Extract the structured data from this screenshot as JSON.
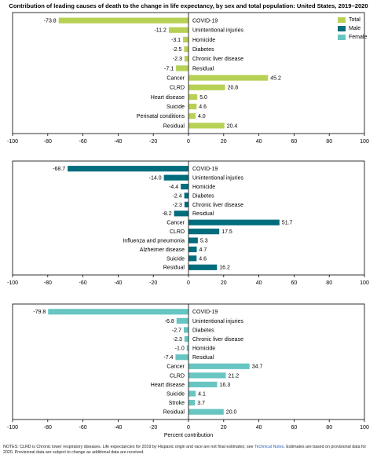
{
  "title": "Contribution of leading causes of death to the change in life expectancy, by sex and total population: United States, 2019–2020",
  "legend": [
    {
      "label": "Total",
      "color": "#b7d155"
    },
    {
      "label": "Male",
      "color": "#006d7d"
    },
    {
      "label": "Female",
      "color": "#67c5c2"
    }
  ],
  "notes": {
    "part1": "NOTES: CLRD is Chronic lower respiratory diseases. Life expectancies for 2019 by Hispanic origin and race are not final estimates; see ",
    "link": "Technical Notes",
    "part2": ". Estimates are based on provisional data for 2020. Provisional data are subject to change as additional data are received."
  },
  "chart_data": [
    {
      "type": "bar",
      "orientation": "horizontal",
      "series_name": "Total",
      "color": "#b7d155",
      "categories": [
        "COVID-19",
        "Unintentional injuries",
        "Homicide",
        "Diabetes",
        "Chronic liver disease",
        "Residual",
        "Cancer",
        "CLRD",
        "Heart disease",
        "Suicide",
        "Perinatal conditions",
        "Residual"
      ],
      "values": [
        -73.8,
        -11.2,
        -3.1,
        -2.5,
        -2.3,
        -7.1,
        45.2,
        20.8,
        5.0,
        4.6,
        4.0,
        20.4
      ],
      "value_labels": [
        "-73.8",
        "-11.2",
        "-3.1",
        "-2.5",
        "-2.3",
        "-7.1",
        "45.2",
        "20.8",
        "5.0",
        "4.6",
        "4.0",
        "20.4"
      ],
      "xlim": [
        -100,
        100
      ],
      "xticks": [
        "-100",
        "-80",
        "-60",
        "-40",
        "-20",
        "0",
        "20",
        "40",
        "60",
        "80",
        "100"
      ],
      "xlabel": ""
    },
    {
      "type": "bar",
      "orientation": "horizontal",
      "series_name": "Male",
      "color": "#006d7d",
      "categories": [
        "COVID-19",
        "Unintentional injuries",
        "Homicide",
        "Diabetes",
        "Chronic liver disease",
        "Residual",
        "Cancer",
        "CLRD",
        "Influenza and pneumonia",
        "Alzheimer disease",
        "Suicide",
        "Residual"
      ],
      "values": [
        -68.7,
        -14.0,
        -4.4,
        -2.4,
        -2.3,
        -8.2,
        51.7,
        17.5,
        5.3,
        4.7,
        4.6,
        16.2
      ],
      "value_labels": [
        "-68.7",
        "-14.0",
        "-4.4",
        "-2.4",
        "-2.3",
        "-8.2",
        "51.7",
        "17.5",
        "5.3",
        "4.7",
        "4.6",
        "16.2"
      ],
      "xlim": [
        -100,
        100
      ],
      "xticks": [
        "-100",
        "-80",
        "-60",
        "-40",
        "-20",
        "0",
        "20",
        "40",
        "60",
        "80",
        "100"
      ],
      "xlabel": ""
    },
    {
      "type": "bar",
      "orientation": "horizontal",
      "series_name": "Female",
      "color": "#67c5c2",
      "categories": [
        "COVID-19",
        "Unintentional injuries",
        "Diabetes",
        "Chronic liver disease",
        "Homicide",
        "Residual",
        "Cancer",
        "CLRD",
        "Heart disease",
        "Suicide",
        "Stroke",
        "Residual"
      ],
      "values": [
        -79.8,
        -6.8,
        -2.7,
        -2.3,
        -1.0,
        -7.4,
        34.7,
        21.2,
        16.3,
        4.1,
        3.7,
        20.0
      ],
      "value_labels": [
        "-79.8",
        "-6.8",
        "-2.7",
        "-2.3",
        "-1.0",
        "-7.4",
        "34.7",
        "21.2",
        "16.3",
        "4.1",
        "3.7",
        "20.0"
      ],
      "xlim": [
        -100,
        100
      ],
      "xticks": [
        "-100",
        "-80",
        "-60",
        "-40",
        "-20",
        "0",
        "20",
        "40",
        "60",
        "80",
        "100"
      ],
      "xlabel": "Percent contribution"
    }
  ]
}
